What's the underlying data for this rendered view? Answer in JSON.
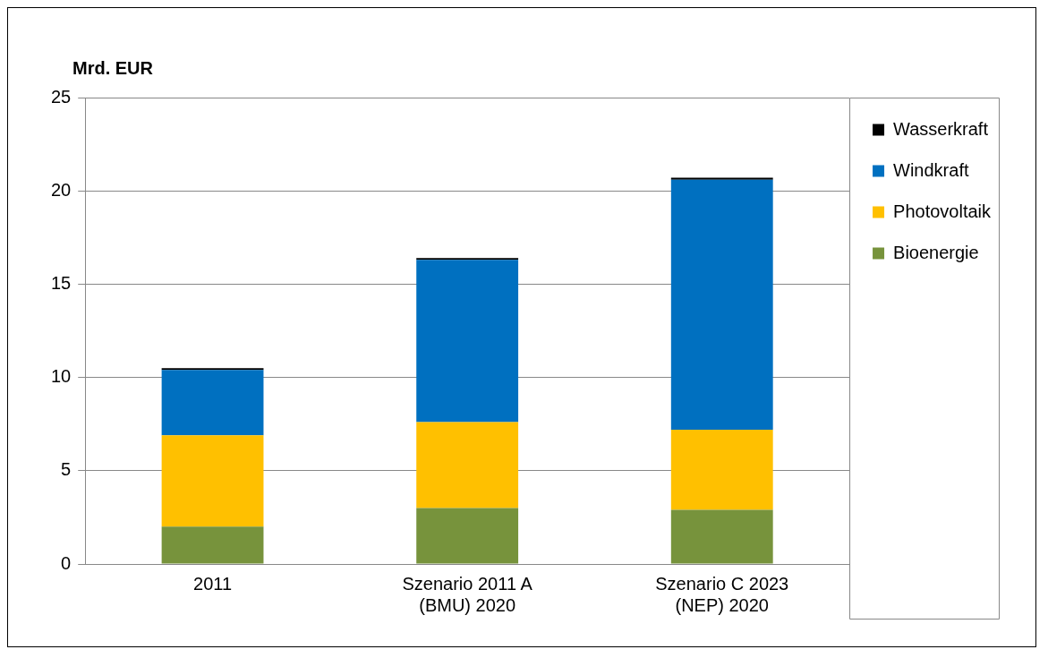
{
  "chart_data": {
    "type": "bar",
    "stacked": true,
    "ylabel": "Mrd. EUR",
    "categories": [
      "2011",
      "Szenario 2011 A (BMU) 2020",
      "Szenario C 2023 (NEP) 2020"
    ],
    "series": [
      {
        "name": "Bioenergie",
        "color": "#77933c",
        "values": [
          2.0,
          3.0,
          2.9
        ]
      },
      {
        "name": "Photovoltaik",
        "color": "#ffc000",
        "values": [
          4.9,
          4.6,
          4.3
        ]
      },
      {
        "name": "Windkraft",
        "color": "#0070c0",
        "values": [
          3.5,
          8.7,
          13.4
        ]
      },
      {
        "name": "Wasserkraft",
        "color": "#000000",
        "values": [
          0.1,
          0.1,
          0.1
        ]
      }
    ],
    "ylim": [
      0,
      25
    ],
    "yticks": [
      0,
      5,
      10,
      15,
      20,
      25
    ],
    "grid": "y",
    "legend": "top right"
  }
}
